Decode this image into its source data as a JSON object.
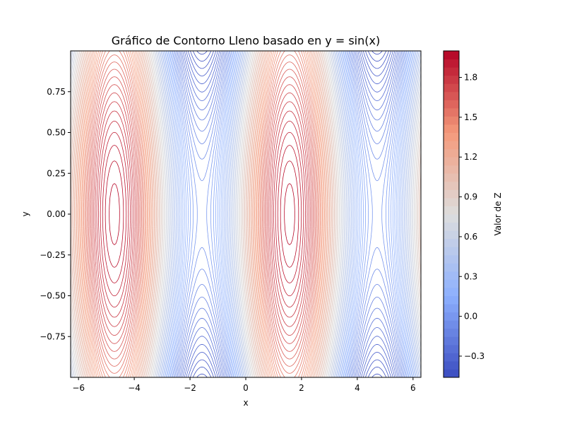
{
  "chart_data": {
    "type": "contour",
    "title": "Gráfico de Contorno Lleno basado en y = sin(x)",
    "xlabel": "x",
    "ylabel": "y",
    "xlim": [
      -6.283,
      6.283
    ],
    "ylim": [
      -1.0,
      1.0
    ],
    "x_ticks": [
      -6,
      -4,
      -2,
      0,
      2,
      4,
      6
    ],
    "y_ticks": [
      -0.75,
      -0.5,
      -0.25,
      0.0,
      0.25,
      0.5,
      0.75
    ],
    "x_tick_labels": [
      "−6",
      "−4",
      "−2",
      "0",
      "2",
      "4",
      "6"
    ],
    "y_tick_labels": [
      "−0.75",
      "−0.50",
      "−0.25",
      "0.00",
      "0.25",
      "0.50",
      "0.75"
    ],
    "colormap": "coolwarm",
    "function": "Z = sin(x) + cos(y)",
    "z_range": [
      -0.46,
      2.0
    ],
    "colorbar": {
      "label": "Valor de Z",
      "ticks": [
        -0.3,
        0.0,
        0.3,
        0.6,
        0.9,
        1.2,
        1.5,
        1.8
      ],
      "tick_labels": [
        "−0.3",
        "0.0",
        "0.3",
        "0.6",
        "0.9",
        "1.2",
        "1.5",
        "1.8"
      ]
    }
  }
}
